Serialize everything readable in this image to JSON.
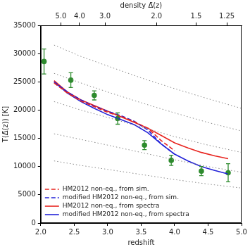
{
  "chart_data": {
    "type": "line",
    "xlabel": "redshift",
    "ylabel": "T(Δ̄(z)) [K]",
    "xlim": [
      2.0,
      5.0
    ],
    "ylim": [
      0,
      35000
    ],
    "xticks": [
      {
        "value": 2.0,
        "label": "2.0"
      },
      {
        "value": 2.5,
        "label": "2.5"
      },
      {
        "value": 3.0,
        "label": "3.0"
      },
      {
        "value": 3.5,
        "label": "3.5"
      },
      {
        "value": 4.0,
        "label": "4.0"
      },
      {
        "value": 4.5,
        "label": "4.5"
      },
      {
        "value": 5.0,
        "label": "5.0"
      }
    ],
    "yticks": [
      0,
      5000,
      10000,
      15000,
      20000,
      25000,
      30000,
      35000
    ],
    "grid": false,
    "legend": "lower left",
    "top_axis": {
      "label": "density Δ̄(z)",
      "ticks": [
        {
          "value": 5,
          "label": "5.0"
        },
        {
          "value": 4,
          "label": "4.0"
        },
        {
          "value": 3,
          "label": "3.0"
        },
        {
          "value": 2,
          "label": "2.0"
        },
        1.5,
        1.25
      ],
      "redshift": [
        2.3,
        2.58,
        2.96,
        3.73,
        4.32,
        4.78
      ]
    },
    "series": [
      {
        "color": "#888888",
        "line_style": "dotted",
        "x": [
          2.2,
          2.6,
          3.0,
          3.5,
          4.0,
          4.5,
          5.0
        ],
        "values": [
          31500,
          29500,
          27800,
          25700,
          23800,
          22000,
          20300
        ]
      },
      {
        "color": "#888888",
        "line_style": "dotted",
        "x": [
          2.2,
          2.6,
          3.0,
          3.5,
          4.0,
          4.5,
          5.0
        ],
        "values": [
          26500,
          24800,
          23200,
          21300,
          19500,
          17800,
          16300
        ]
      },
      {
        "color": "#888888",
        "line_style": "dotted",
        "x": [
          2.2,
          2.6,
          3.0,
          3.5,
          4.0,
          4.5,
          5.0
        ],
        "values": [
          21500,
          20000,
          18700,
          17000,
          15300,
          13800,
          12500
        ]
      },
      {
        "color": "#888888",
        "line_style": "dotted",
        "x": [
          2.2,
          2.6,
          3.0,
          3.5,
          4.0,
          4.5,
          5.0
        ],
        "values": [
          15800,
          14800,
          13800,
          12500,
          11200,
          10000,
          9000
        ]
      },
      {
        "color": "#888888",
        "line_style": "dotted",
        "x": [
          2.2,
          2.6,
          3.0,
          3.5,
          4.0,
          4.5,
          5.0
        ],
        "values": [
          11000,
          10200,
          9500,
          8600,
          7700,
          6900,
          6200
        ]
      },
      {
        "name": "HM2012 non-eq., from sim.",
        "color": "#e8241f",
        "line_style": "dashed",
        "x": [
          2.2,
          2.4,
          2.6,
          2.8,
          3.0,
          3.2,
          3.4,
          3.6,
          3.8,
          4.0
        ],
        "values": [
          24800,
          23000,
          21600,
          20600,
          19600,
          18900,
          17900,
          16800,
          14600,
          12800
        ]
      },
      {
        "name": "modified HM2012 non-eq., from sim.",
        "color": "#2222d8",
        "line_style": "dashed",
        "x": [
          2.2,
          2.4,
          2.6,
          2.8,
          3.0,
          3.2,
          3.4,
          3.6,
          3.8,
          4.0
        ],
        "values": [
          25000,
          23200,
          21800,
          20700,
          19800,
          19000,
          18000,
          16500,
          14000,
          12200
        ]
      },
      {
        "name": "HM2012 non-eq., from spectra",
        "color": "#e8241f",
        "line_style": "solid",
        "x": [
          2.2,
          2.4,
          2.6,
          2.8,
          3.0,
          3.2,
          3.4,
          3.6,
          3.8,
          4.0,
          4.2,
          4.4,
          4.6,
          4.8
        ],
        "values": [
          25200,
          23200,
          21800,
          20800,
          19800,
          18800,
          17800,
          16800,
          15500,
          14200,
          13300,
          12500,
          11900,
          11400
        ]
      },
      {
        "name": "modified HM2012 non-eq., from spectra",
        "color": "#2222d8",
        "line_style": "solid",
        "x": [
          2.2,
          2.4,
          2.6,
          2.8,
          3.0,
          3.2,
          3.4,
          3.6,
          3.8,
          4.0,
          4.2,
          4.4,
          4.6,
          4.8
        ],
        "values": [
          25000,
          23000,
          21500,
          20300,
          19200,
          18300,
          17400,
          16000,
          14000,
          12200,
          11000,
          10000,
          9300,
          8700
        ]
      },
      {
        "color": "#2e8b2e",
        "line_style": "none",
        "marker": "circle",
        "x": [
          2.05,
          2.45,
          2.8,
          3.15,
          3.55,
          3.95,
          4.4,
          4.8
        ],
        "values": [
          28600,
          25300,
          22600,
          18500,
          13800,
          11100,
          9200,
          8900
        ],
        "errors": [
          2200,
          1300,
          800,
          1000,
          800,
          900,
          800,
          1600
        ]
      }
    ]
  }
}
